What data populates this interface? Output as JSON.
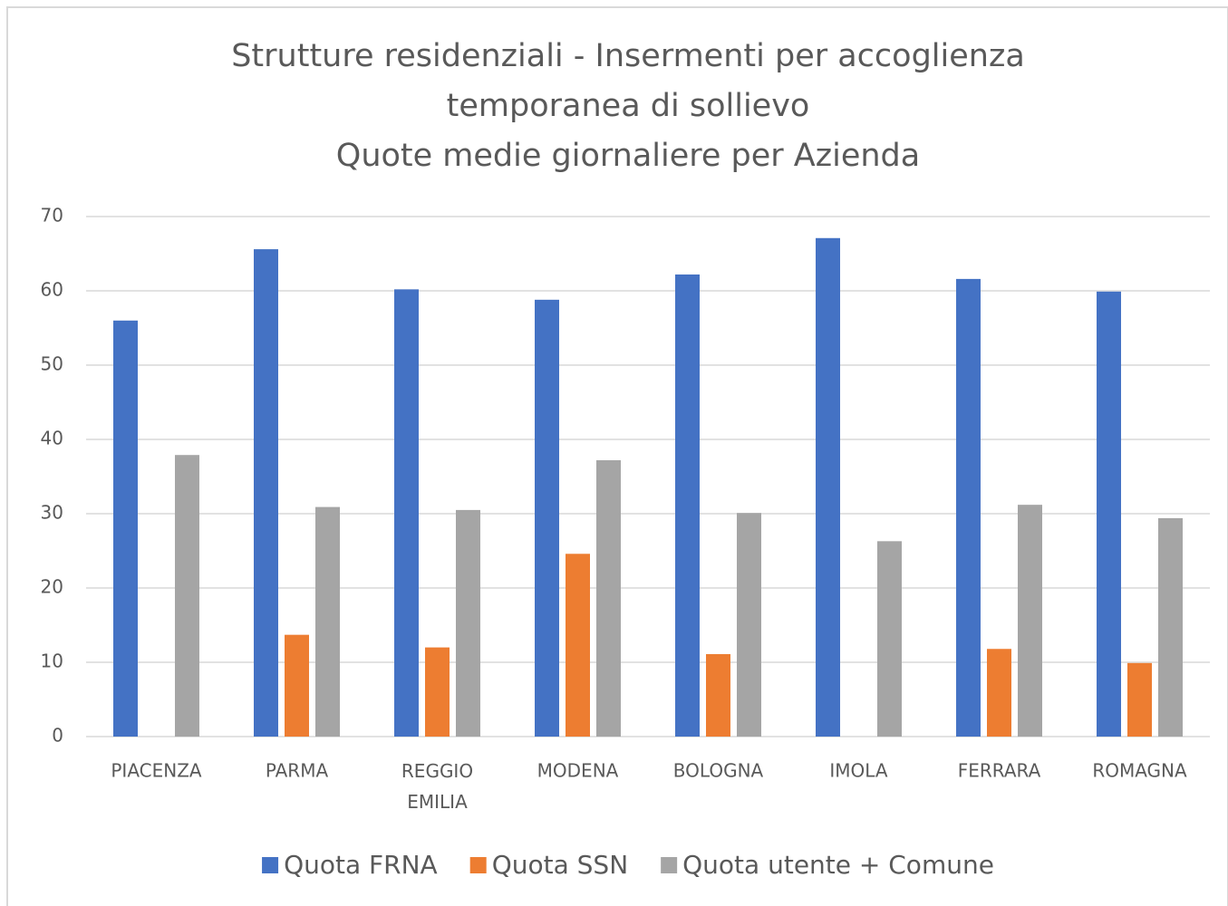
{
  "chart_data": {
    "type": "bar",
    "title": [
      "Strutture residenziali - Insermenti per accoglienza",
      "temporanea di sollievo",
      "Quote medie giornaliere per Azienda"
    ],
    "categories": [
      "PIACENZA",
      "PARMA",
      "REGGIO EMILIA",
      "MODENA",
      "BOLOGNA",
      "IMOLA",
      "FERRARA",
      "ROMAGNA"
    ],
    "series": [
      {
        "name": "Quota FRNA",
        "color": "#4472c4",
        "values": [
          56.0,
          65.6,
          60.2,
          58.8,
          62.2,
          67.1,
          61.6,
          59.9
        ]
      },
      {
        "name": "Quota SSN",
        "color": "#ed7d31",
        "values": [
          0,
          13.7,
          12.0,
          24.6,
          11.1,
          0,
          11.8,
          9.9
        ]
      },
      {
        "name": "Quota utente + Comune",
        "color": "#a5a5a5",
        "values": [
          37.9,
          30.9,
          30.5,
          37.2,
          30.1,
          26.3,
          31.2,
          29.4
        ]
      }
    ],
    "ylim": [
      0,
      70
    ],
    "yticks": [
      0,
      10,
      20,
      30,
      40,
      50,
      60,
      70
    ],
    "grid": true,
    "legend": "bottom"
  }
}
